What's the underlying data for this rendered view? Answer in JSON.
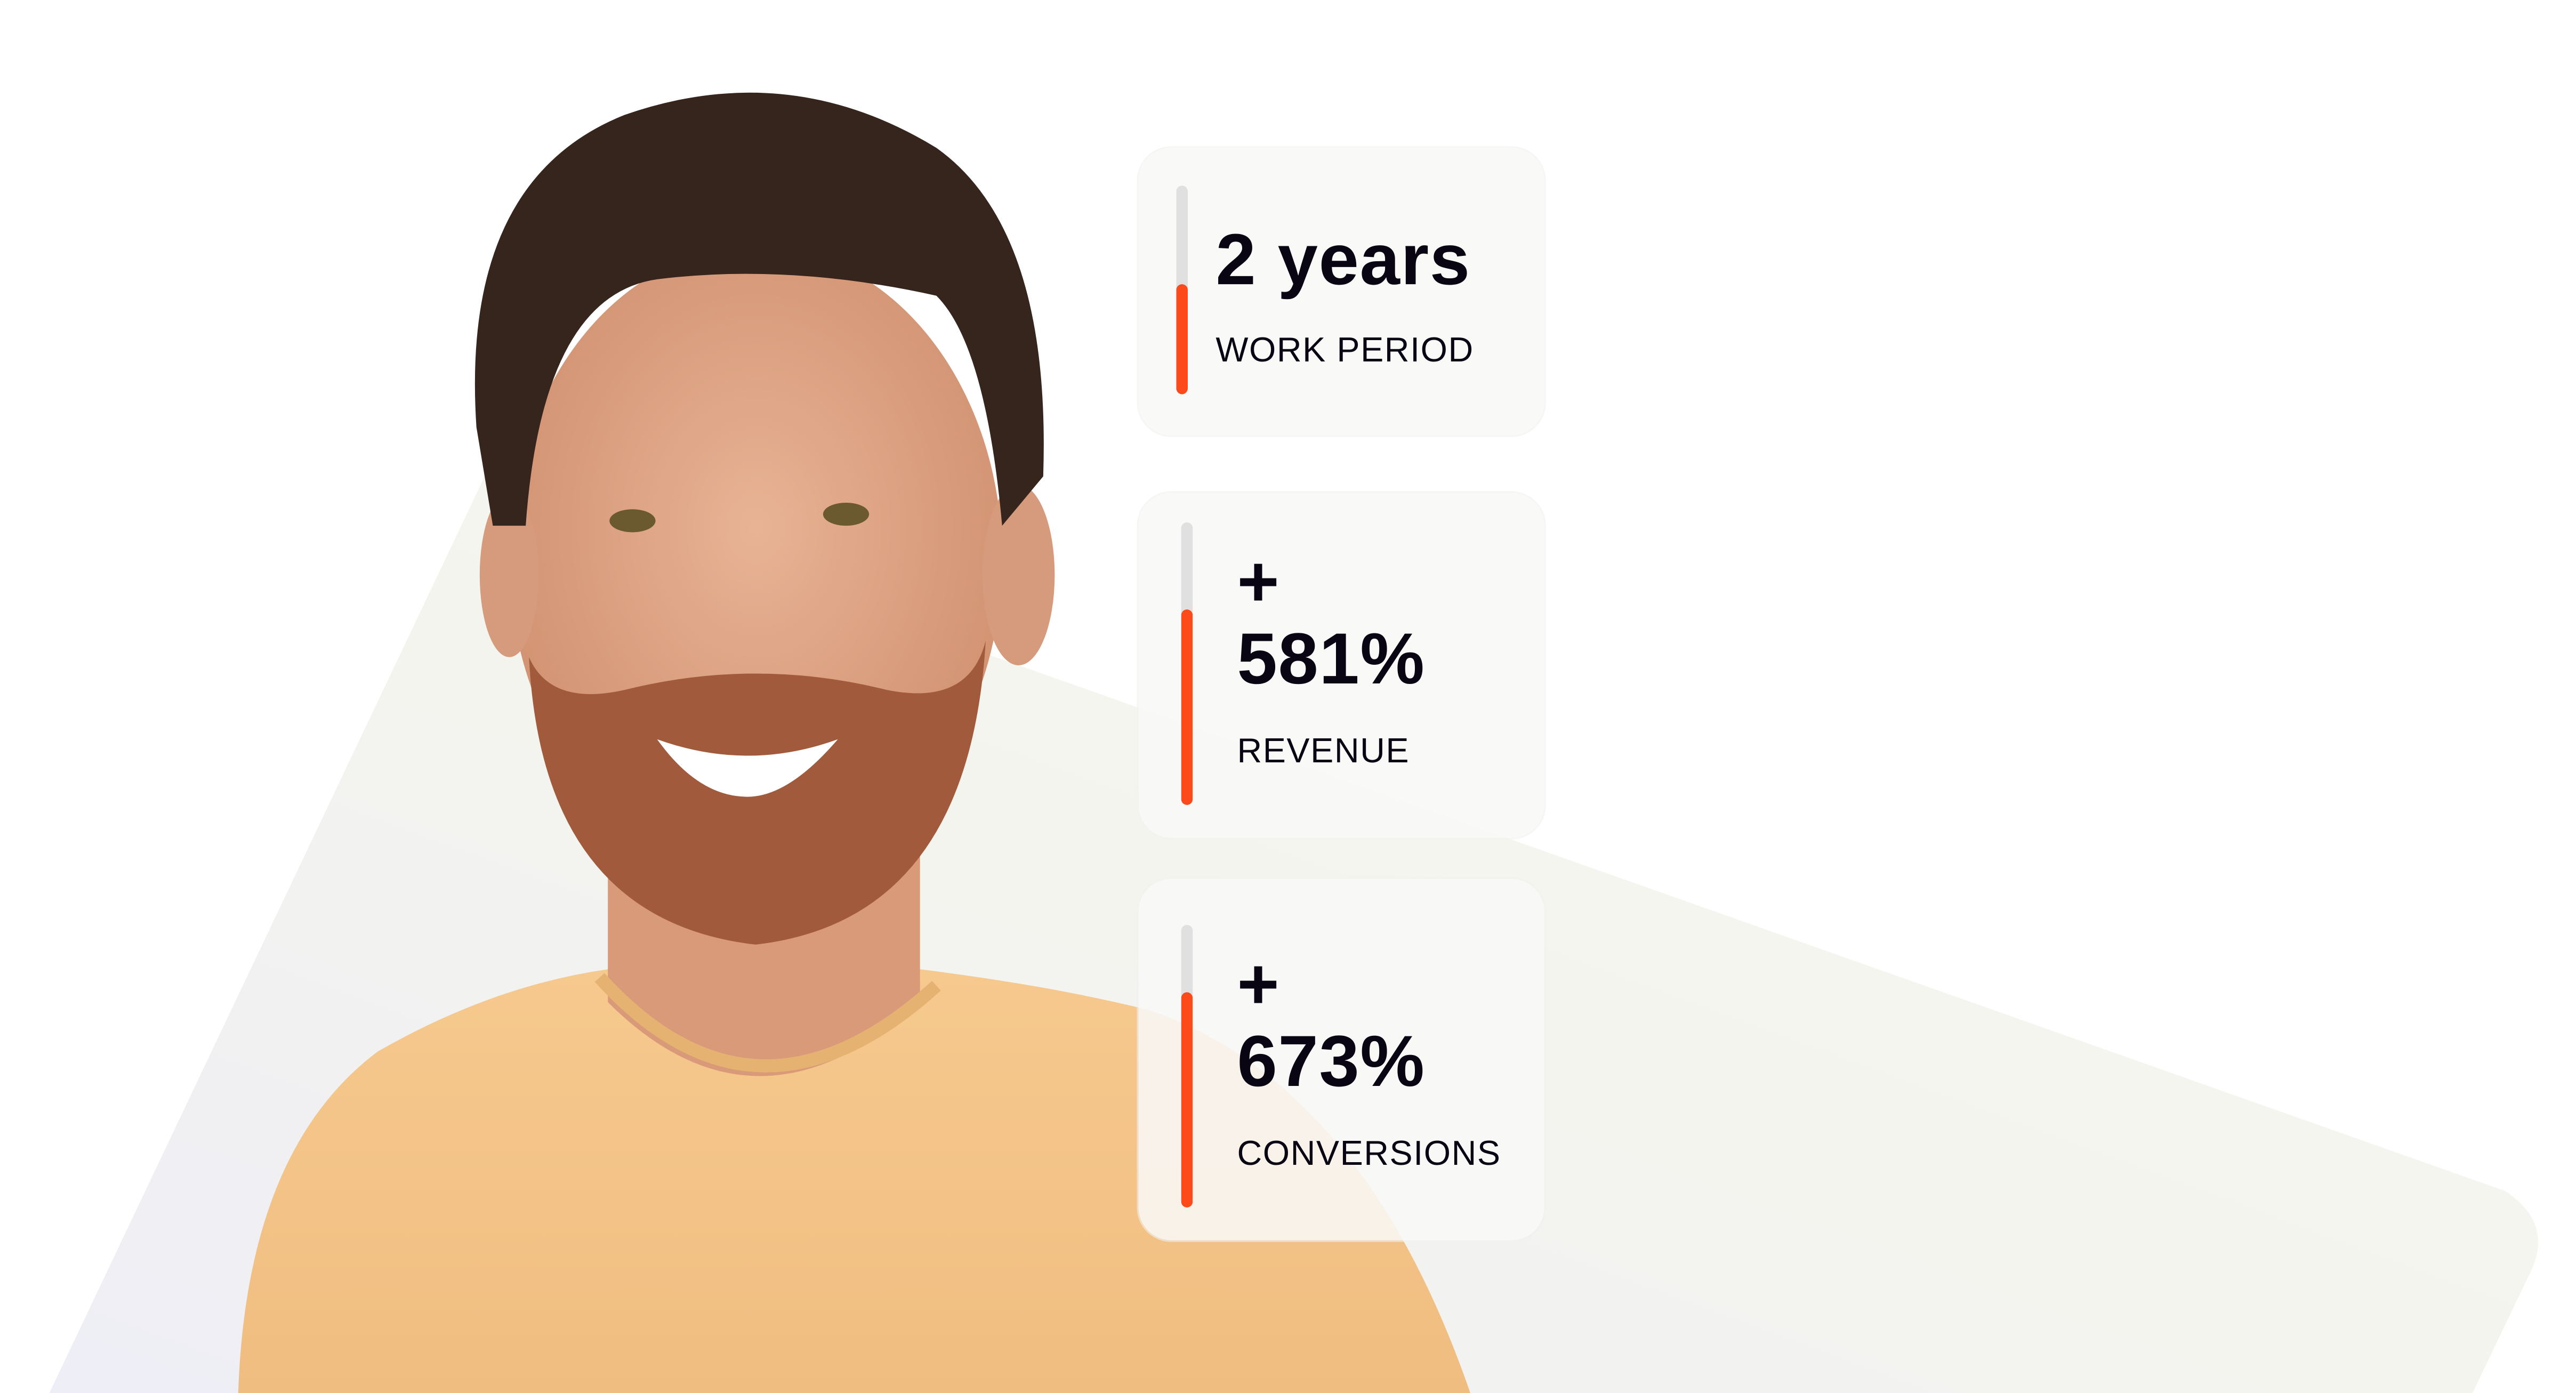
{
  "accent_color": "#fc4a1a",
  "track_color": "#e0e0e0",
  "stats": [
    {
      "value": "2 years",
      "label": "WORK PERIOD",
      "progress": 0.53
    },
    {
      "prefix": "+",
      "value": "581%",
      "label": "REVENUE",
      "progress": 0.69
    },
    {
      "prefix": "+",
      "value": "673%",
      "label": "CONVERSIONS",
      "progress": 0.76
    }
  ]
}
